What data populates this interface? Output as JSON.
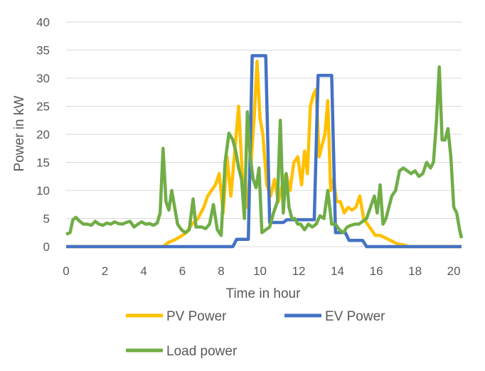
{
  "chart_data": {
    "type": "line",
    "title": "",
    "xlabel": "Time in hour",
    "ylabel": "Power in kW",
    "xlim": [
      0,
      20.4
    ],
    "ylim": [
      0,
      40
    ],
    "xticks": [
      0,
      2,
      4,
      6,
      8,
      10,
      12,
      14,
      16,
      18,
      20
    ],
    "yticks": [
      0,
      5,
      10,
      15,
      20,
      25,
      30,
      35,
      40
    ],
    "grid": "horizontal",
    "legend_position": "bottom",
    "series": [
      {
        "name": "PV Power",
        "color": "#ffc000",
        "x": [
          0,
          5.0,
          5.3,
          5.6,
          5.9,
          6.2,
          6.5,
          6.8,
          7.1,
          7.3,
          7.5,
          7.7,
          7.9,
          8.1,
          8.3,
          8.5,
          8.7,
          8.9,
          9.1,
          9.3,
          9.5,
          9.7,
          9.85,
          10.0,
          10.15,
          10.35,
          10.55,
          10.75,
          10.95,
          11.15,
          11.35,
          11.55,
          11.75,
          11.95,
          12.15,
          12.3,
          12.45,
          12.6,
          12.75,
          12.9,
          13.05,
          13.2,
          13.35,
          13.5,
          13.65,
          13.8,
          13.95,
          14.15,
          14.35,
          14.55,
          14.75,
          14.95,
          15.15,
          15.35,
          15.55,
          15.75,
          15.95,
          16.2,
          16.5,
          16.8,
          17.1,
          17.4,
          17.7,
          20.4
        ],
        "y": [
          0,
          0,
          0.8,
          1.2,
          1.8,
          2.5,
          4,
          5,
          7,
          9,
          10,
          11,
          13,
          6,
          16,
          9,
          17,
          25,
          12,
          7,
          13,
          23,
          33,
          23,
          20,
          11,
          9,
          12,
          8,
          11,
          13,
          10,
          15,
          16,
          11,
          17,
          13,
          25,
          27,
          28,
          16,
          18,
          20,
          26,
          10,
          12,
          8,
          8,
          6,
          7,
          6.5,
          7,
          9,
          5,
          4,
          3,
          2,
          2,
          1.5,
          1,
          0.5,
          0.3,
          0,
          0
        ]
      },
      {
        "name": "EV Power",
        "color": "#4472c4",
        "x": [
          0,
          8.6,
          8.8,
          9.4,
          9.6,
          10.3,
          10.5,
          11.2,
          11.4,
          12.8,
          13.0,
          13.7,
          13.9,
          14.4,
          14.6,
          15.3,
          15.5,
          20.4
        ],
        "y": [
          0,
          0,
          1.3,
          1.3,
          34,
          34,
          4.3,
          4.3,
          4.8,
          4.8,
          30.5,
          30.5,
          2.5,
          2.5,
          1.1,
          1.1,
          0,
          0
        ]
      },
      {
        "name": "Load power",
        "color": "#70ad47",
        "x": [
          0,
          0.2,
          0.35,
          0.5,
          0.7,
          0.9,
          1.1,
          1.3,
          1.5,
          1.7,
          1.9,
          2.1,
          2.3,
          2.5,
          2.7,
          2.9,
          3.1,
          3.3,
          3.5,
          3.7,
          3.9,
          4.1,
          4.3,
          4.5,
          4.7,
          4.85,
          5.0,
          5.15,
          5.3,
          5.45,
          5.6,
          5.75,
          5.95,
          6.15,
          6.35,
          6.55,
          6.7,
          6.85,
          7.0,
          7.2,
          7.4,
          7.6,
          7.8,
          8.0,
          8.2,
          8.4,
          8.6,
          8.75,
          8.9,
          9.05,
          9.2,
          9.35,
          9.5,
          9.65,
          9.8,
          9.95,
          10.1,
          10.3,
          10.5,
          10.7,
          10.9,
          11.05,
          11.2,
          11.35,
          11.5,
          11.65,
          11.8,
          11.95,
          12.1,
          12.3,
          12.5,
          12.7,
          12.9,
          13.1,
          13.3,
          13.5,
          13.7,
          13.9,
          14.1,
          14.3,
          14.5,
          14.7,
          14.9,
          15.1,
          15.3,
          15.5,
          15.7,
          15.9,
          16.05,
          16.2,
          16.35,
          16.5,
          16.65,
          16.8,
          17.0,
          17.2,
          17.4,
          17.6,
          17.8,
          18.0,
          18.2,
          18.4,
          18.6,
          18.8,
          18.95,
          19.1,
          19.25,
          19.4,
          19.55,
          19.7,
          19.85,
          20.0,
          20.15,
          20.3,
          20.4
        ],
        "y": [
          2.2,
          2.5,
          4.8,
          5.2,
          4.5,
          4,
          4,
          3.8,
          4.5,
          4,
          3.8,
          4.2,
          4,
          4.4,
          4.1,
          4,
          4.3,
          4.5,
          3.5,
          4,
          4.4,
          4,
          4.1,
          3.8,
          4.2,
          6,
          17.5,
          8,
          6.5,
          10,
          7,
          4,
          3,
          2.5,
          3,
          8.5,
          3.5,
          3.5,
          3.5,
          3.2,
          4,
          7.5,
          3,
          2,
          15,
          20.2,
          19,
          17,
          14,
          12,
          5,
          24,
          16,
          12,
          10.5,
          14,
          2.5,
          3,
          3.5,
          6,
          8,
          22.5,
          6,
          13,
          7,
          5,
          5,
          4,
          4,
          3,
          4,
          3.5,
          4,
          5.5,
          5,
          10,
          4,
          4,
          3,
          2.5,
          3.5,
          3.8,
          4,
          4,
          4.5,
          5,
          7,
          9,
          6,
          11,
          4,
          5,
          7,
          9,
          10,
          13.5,
          14,
          13.5,
          13,
          13.5,
          12.5,
          13,
          15,
          14,
          15,
          22,
          32,
          19,
          19,
          21,
          16,
          7,
          6,
          3,
          1.5
        ]
      }
    ]
  }
}
